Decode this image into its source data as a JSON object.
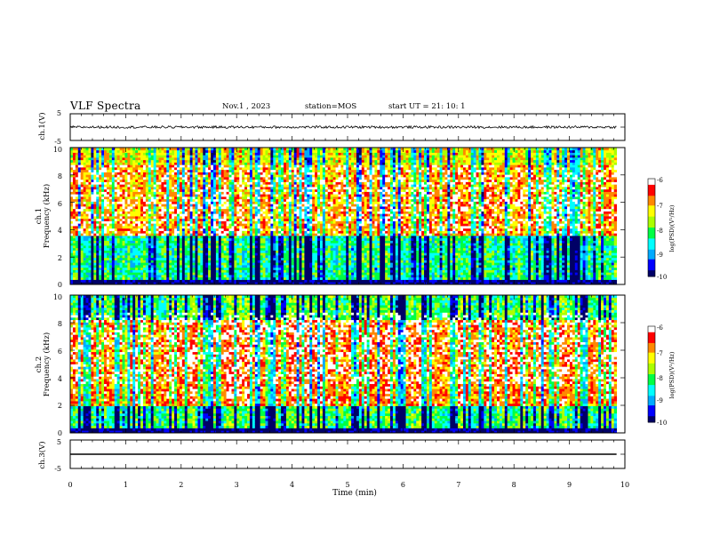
{
  "header": {
    "title": "VLF Spectra",
    "date": "Nov.1 , 2023",
    "station": "station=MOS",
    "start": "start UT = 21: 10: 1"
  },
  "panels": {
    "ch1_wave": {
      "ylabel": "ch.1(V)",
      "yticks": [
        "5",
        "-5"
      ]
    },
    "ch1_spec": {
      "ylabel_line1": "ch.1",
      "ylabel_line2": "Frequency (kHz)",
      "yticks": [
        "0",
        "2",
        "4",
        "6",
        "8",
        "10"
      ],
      "colorbar_label": "log(PSD)(V²/Hz)",
      "colorbar_ticks": [
        "-6",
        "-7",
        "-8",
        "-9",
        "-10"
      ]
    },
    "ch2_spec": {
      "ylabel_line1": "ch.2",
      "ylabel_line2": "Frequency (kHz)",
      "yticks": [
        "0",
        "2",
        "4",
        "6",
        "8",
        "10"
      ],
      "colorbar_label": "log(PSD)(V²/Hz)",
      "colorbar_ticks": [
        "-6",
        "-7",
        "-8",
        "-9",
        "-10"
      ]
    },
    "ch3_wave": {
      "ylabel": "ch.3(V)",
      "yticks": [
        "5",
        "-5"
      ]
    }
  },
  "xaxis": {
    "label": "Time (min)",
    "ticks": [
      "0",
      "1",
      "2",
      "3",
      "4",
      "5",
      "6",
      "7",
      "8",
      "9",
      "10"
    ]
  },
  "colors": {
    "colormap": [
      "#000066",
      "#0000ff",
      "#00aaff",
      "#00ffff",
      "#00ff44",
      "#aaff00",
      "#ffff00",
      "#ff8800",
      "#ff0000",
      "#ffffff"
    ]
  },
  "chart_data": [
    {
      "type": "line",
      "name": "ch.1 waveform",
      "ylabel": "ch.1(V)",
      "xlim": [
        0,
        10
      ],
      "ylim": [
        -5,
        5
      ],
      "approx_level": 0,
      "x": [
        0,
        9.85
      ],
      "values": [
        0,
        0
      ]
    },
    {
      "type": "heatmap",
      "name": "ch.1 spectrogram",
      "xlabel": "Time (min)",
      "ylabel": "Frequency (kHz)",
      "xlim": [
        0,
        10
      ],
      "ylim": [
        0,
        10
      ],
      "data_end_min": 9.85,
      "zlabel": "log(PSD)(V²/Hz)",
      "zlim": [
        -10,
        -6
      ],
      "dominant_band_levels": [
        {
          "freq_khz": [
            0,
            0.3
          ],
          "log_psd": -10
        },
        {
          "freq_khz": [
            0.3,
            3.5
          ],
          "log_psd": -8.5
        },
        {
          "freq_khz": [
            3.5,
            8.7
          ],
          "log_psd": -7
        },
        {
          "freq_khz": [
            8.7,
            10
          ],
          "log_psd": -7.5
        }
      ]
    },
    {
      "type": "heatmap",
      "name": "ch.2 spectrogram",
      "xlabel": "Time (min)",
      "ylabel": "Frequency (kHz)",
      "xlim": [
        0,
        10
      ],
      "ylim": [
        0,
        10
      ],
      "data_end_min": 9.85,
      "zlabel": "log(PSD)(V²/Hz)",
      "zlim": [
        -10,
        -6
      ],
      "dominant_band_levels": [
        {
          "freq_khz": [
            0,
            0.3
          ],
          "log_psd": -10
        },
        {
          "freq_khz": [
            0.3,
            2
          ],
          "log_psd": -8.3
        },
        {
          "freq_khz": [
            2,
            8.3
          ],
          "log_psd": -6.8
        },
        {
          "freq_khz": [
            8.3,
            10
          ],
          "log_psd": -8.2
        }
      ]
    },
    {
      "type": "line",
      "name": "ch.3 waveform",
      "ylabel": "ch.3(V)",
      "xlim": [
        0,
        10
      ],
      "ylim": [
        -5,
        5
      ],
      "approx_level": 0,
      "x": [
        0,
        9.85
      ],
      "values": [
        0,
        0
      ]
    }
  ]
}
